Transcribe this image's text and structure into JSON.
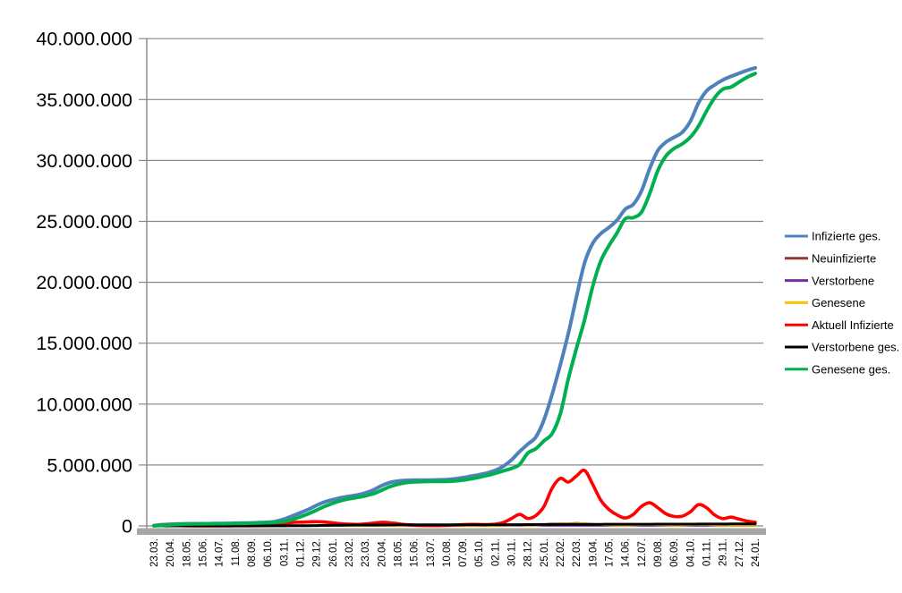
{
  "chart_data": {
    "type": "line",
    "title": "",
    "grid": true,
    "legend_position": "right",
    "y_axis": {
      "min": 0,
      "max": 40000000,
      "gridline_step": 5000000,
      "tick_labels": [
        "0",
        "5.000.000",
        "10.000.000",
        "15.000.000",
        "20.000.000",
        "25.000.000",
        "30.000.000",
        "35.000.000",
        "40.000.000"
      ]
    },
    "x_axis": {
      "label_rotation_deg": 90,
      "points_per_tick": 2,
      "tick_labels": [
        "23.03.",
        "20.04.",
        "18.05.",
        "15.06.",
        "14.07.",
        "11.08.",
        "08.09.",
        "06.10.",
        "03.11.",
        "01.12.",
        "29.12.",
        "26.01.",
        "23.02.",
        "23.03.",
        "20.04.",
        "18.05.",
        "15.06.",
        "13.07.",
        "10.08.",
        "07.09.",
        "05.10.",
        "02.11.",
        "30.11.",
        "28.12.",
        "25.01.",
        "22.02.",
        "22.03.",
        "19.04.",
        "17.05.",
        "14.06.",
        "12.07.",
        "09.08.",
        "06.09.",
        "04.10.",
        "01.11.",
        "29.11.",
        "27.12.",
        "24.01."
      ]
    },
    "series": [
      {
        "name": "Infizierte ges.",
        "color": "#4F81BD",
        "values": [
          30000,
          100000,
          143000,
          163000,
          175000,
          182000,
          187000,
          193000,
          199000,
          206000,
          218000,
          233000,
          252000,
          272000,
          304000,
          373000,
          560000,
          810000,
          1070000,
          1350000,
          1680000,
          1960000,
          2160000,
          2310000,
          2430000,
          2530000,
          2700000,
          2950000,
          3300000,
          3550000,
          3680000,
          3740000,
          3760000,
          3765000,
          3770000,
          3780000,
          3800000,
          3860000,
          3960000,
          4080000,
          4200000,
          4350000,
          4560000,
          4900000,
          5420000,
          6100000,
          6700000,
          7300000,
          8700000,
          10800000,
          13200000,
          15800000,
          18800000,
          21600000,
          23200000,
          24000000,
          24500000,
          25100000,
          26000000,
          26400000,
          27500000,
          29300000,
          30800000,
          31500000,
          31900000,
          32300000,
          33200000,
          34700000,
          35700000,
          36200000,
          36600000,
          36900000,
          37150000,
          37400000,
          37600000
        ]
      },
      {
        "name": "Neuinfizierte",
        "color": "#943634",
        "values": [
          4000,
          6000,
          2500,
          1000,
          600,
          400,
          400,
          400,
          400,
          600,
          1000,
          1300,
          1400,
          1700,
          2800,
          7000,
          18000,
          20000,
          18000,
          22000,
          25000,
          15000,
          11000,
          8000,
          8000,
          10000,
          16000,
          20000,
          22000,
          14000,
          7000,
          3000,
          1500,
          1000,
          1200,
          2500,
          4500,
          8000,
          11000,
          9000,
          8000,
          10000,
          17000,
          40000,
          60000,
          55000,
          35000,
          60000,
          130000,
          190000,
          200000,
          190000,
          250000,
          180000,
          110000,
          70000,
          45000,
          35000,
          40000,
          80000,
          110000,
          90000,
          60000,
          40000,
          35000,
          50000,
          90000,
          110000,
          65000,
          40000,
          30000,
          40000,
          25000,
          15000,
          10000
        ]
      },
      {
        "name": "Verstorbene",
        "color": "#7030A0",
        "values": [
          20,
          150,
          250,
          200,
          100,
          50,
          30,
          20,
          20,
          20,
          20,
          30,
          30,
          30,
          40,
          60,
          120,
          250,
          400,
          600,
          800,
          900,
          800,
          600,
          400,
          300,
          250,
          250,
          250,
          250,
          200,
          150,
          100,
          60,
          40,
          30,
          30,
          40,
          60,
          70,
          70,
          80,
          100,
          150,
          250,
          350,
          400,
          350,
          300,
          250,
          250,
          300,
          300,
          300,
          300,
          250,
          200,
          150,
          100,
          100,
          100,
          120,
          150,
          150,
          130,
          120,
          120,
          150,
          150,
          150,
          150,
          160,
          160,
          120,
          100
        ]
      },
      {
        "name": "Genesene",
        "color": "#FFC000",
        "values": [
          1000,
          4000,
          5000,
          2000,
          1000,
          600,
          500,
          400,
          400,
          500,
          800,
          1100,
          1300,
          1500,
          2000,
          4000,
          10000,
          15000,
          17000,
          19000,
          22000,
          18000,
          14000,
          10000,
          8500,
          9000,
          12000,
          17000,
          20000,
          17000,
          10000,
          5000,
          2500,
          1300,
          1000,
          1800,
          3200,
          6000,
          9000,
          9500,
          8500,
          9000,
          13000,
          28000,
          45000,
          52000,
          40000,
          45000,
          90000,
          150000,
          185000,
          195000,
          210000,
          215000,
          160000,
          100000,
          65000,
          45000,
          38000,
          60000,
          90000,
          100000,
          75000,
          50000,
          38000,
          42000,
          70000,
          95000,
          85000,
          55000,
          35000,
          35000,
          30000,
          20000,
          13000
        ]
      },
      {
        "name": "Aktuell Infizierte",
        "color": "#FF0000",
        "values": [
          25000,
          58000,
          45000,
          28000,
          16000,
          10000,
          8000,
          7000,
          7000,
          9000,
          12000,
          15000,
          18000,
          21000,
          29000,
          68000,
          180000,
          280000,
          310000,
          330000,
          355000,
          320000,
          250000,
          180000,
          140000,
          125000,
          160000,
          230000,
          295000,
          260000,
          180000,
          105000,
          60000,
          38000,
          28000,
          33000,
          50000,
          75000,
          105000,
          125000,
          115000,
          110000,
          150000,
          280000,
          600000,
          950000,
          620000,
          850000,
          1600000,
          3100000,
          3900000,
          3600000,
          4100000,
          4550000,
          3400000,
          2100000,
          1350000,
          900000,
          650000,
          950000,
          1600000,
          1900000,
          1500000,
          1000000,
          780000,
          800000,
          1150000,
          1750000,
          1500000,
          900000,
          600000,
          720000,
          560000,
          400000,
          300000
        ]
      },
      {
        "name": "Verstorbene ges.",
        "color": "#000000",
        "values": [
          200,
          1500,
          4500,
          6500,
          7900,
          8500,
          8800,
          9000,
          9100,
          9200,
          9200,
          9300,
          9300,
          9400,
          9600,
          9900,
          10700,
          12500,
          16000,
          22000,
          32000,
          42000,
          53000,
          62000,
          68000,
          72000,
          75000,
          77000,
          80000,
          83000,
          86000,
          88000,
          89500,
          90300,
          91000,
          91500,
          91800,
          92000,
          92400,
          93000,
          93800,
          94700,
          96000,
          98000,
          101000,
          105000,
          110000,
          114000,
          117000,
          119500,
          121500,
          124000,
          126500,
          130000,
          132500,
          134500,
          136500,
          138000,
          139000,
          140000,
          141500,
          143000,
          144500,
          146000,
          147000,
          148500,
          149500,
          151000,
          153000,
          155000,
          157000,
          159500,
          161500,
          163500,
          165500
        ]
      },
      {
        "name": "Genesene ges.",
        "color": "#00B050",
        "values": [
          4800,
          40500,
          93500,
          128500,
          151100,
          163500,
          170200,
          177000,
          182900,
          187800,
          196800,
          208700,
          224700,
          241600,
          265400,
          295100,
          369300,
          517500,
          744000,
          998000,
          1293000,
          1598000,
          1857000,
          2068000,
          2222000,
          2333000,
          2465000,
          2643000,
          2925000,
          3207000,
          3414000,
          3547000,
          3610500,
          3636700,
          3651000,
          3655500,
          3658200,
          3693000,
          3762600,
          3862000,
          3991200,
          4145300,
          4314000,
          4522000,
          4719000,
          5045000,
          5970000,
          6336000,
          6983000,
          7580500,
          9178500,
          12076000,
          14573500,
          16920000,
          19667500,
          21765500,
          23013500,
          24062000,
          25211000,
          25310000,
          25758500,
          27257000,
          29155500,
          30354000,
          30973000,
          31351500,
          31900500,
          32799000,
          34047000,
          35145000,
          35843000,
          36020500,
          36428500,
          36836500,
          37134500
        ]
      }
    ]
  },
  "colors": {
    "background": "#FFFFFF",
    "gridline": "#878787",
    "axis": "#808080",
    "axis_shadow": "#A6A6A6",
    "text": "#000000"
  }
}
